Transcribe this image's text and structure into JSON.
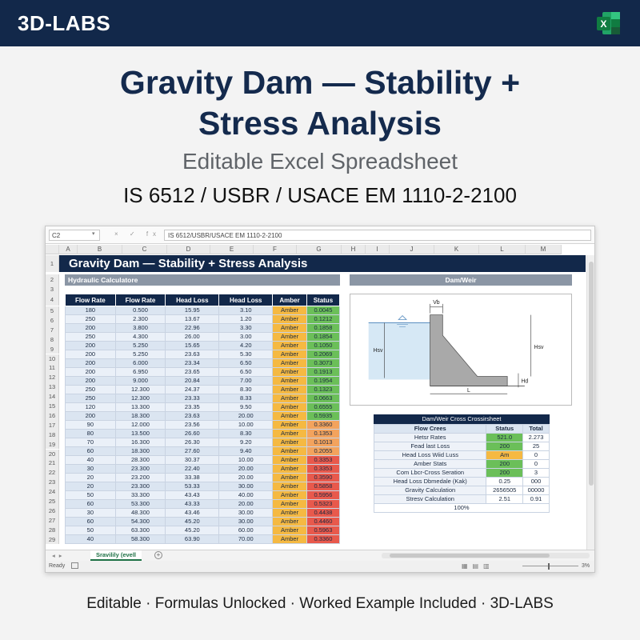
{
  "brand": "3D-LABS",
  "app_icon": "excel-icon",
  "title_line1": "Gravity Dam — Stability +",
  "title_line2": "Stress Analysis",
  "subtitle": "Editable Excel Spreadsheet",
  "standards": "IS 6512 / USBR / USACE EM 1110-2-2100",
  "spreadsheet": {
    "name_box": "C2",
    "formula_icons": "×  ✓  fx",
    "formula_content": "IS 6512/USBR/USACE EM 1110-2-2100",
    "columns": [
      "A",
      "B",
      "C",
      "D",
      "E",
      "F",
      "G",
      "H",
      "I",
      "J",
      "K",
      "L",
      "M"
    ],
    "rows": [
      "1",
      "2",
      "3",
      "4",
      "5",
      "6",
      "7",
      "8",
      "9",
      "10",
      "11",
      "12",
      "13",
      "14",
      "15",
      "16",
      "17",
      "18",
      "19",
      "20",
      "21",
      "22",
      "23",
      "24",
      "25",
      "26",
      "27",
      "28",
      "29"
    ],
    "banner": "Gravity Dam — Stability + Stress Analysis",
    "section_left": "Hydraulic Calculatore",
    "section_right": "Dam/Weir",
    "table_headers": [
      "Flow Rate",
      "Flow Rate",
      "Head Loss",
      "Head Loss",
      "Amber",
      "Status"
    ],
    "table_rows": [
      [
        "180",
        "0.500",
        "15.95",
        "3.10",
        "Amber",
        "0.0045",
        "green"
      ],
      [
        "250",
        "2.300",
        "13.67",
        "1.20",
        "Amber",
        "0.1212",
        "green"
      ],
      [
        "200",
        "3.800",
        "22.96",
        "3.30",
        "Amber",
        "0.1858",
        "green"
      ],
      [
        "250",
        "4.300",
        "26.00",
        "3.00",
        "Amber",
        "0.1854",
        "green"
      ],
      [
        "200",
        "5.250",
        "15.65",
        "4.20",
        "Amber",
        "0.1050",
        "green"
      ],
      [
        "200",
        "5.250",
        "23.63",
        "5.30",
        "Amber",
        "0.2069",
        "green"
      ],
      [
        "200",
        "6.000",
        "23.34",
        "6.50",
        "Amber",
        "0.3073",
        "green"
      ],
      [
        "200",
        "6.950",
        "23.65",
        "6.50",
        "Amber",
        "0.1913",
        "green"
      ],
      [
        "200",
        "9.000",
        "20.84",
        "7.00",
        "Amber",
        "0.1954",
        "green"
      ],
      [
        "250",
        "12.300",
        "24.37",
        "8.30",
        "Amber",
        "0.1323",
        "green"
      ],
      [
        "250",
        "12.300",
        "23.33",
        "8.33",
        "Amber",
        "0.0663",
        "green"
      ],
      [
        "120",
        "13.300",
        "23.35",
        "9.50",
        "Amber",
        "0.6555",
        "green"
      ],
      [
        "200",
        "18.300",
        "23.63",
        "20.00",
        "Amber",
        "0.5935",
        "green"
      ],
      [
        "90",
        "12.000",
        "23.56",
        "10.00",
        "Amber",
        "0.3360",
        "orange"
      ],
      [
        "80",
        "13.500",
        "26.60",
        "8.30",
        "Amber",
        "0.1353",
        "orange"
      ],
      [
        "70",
        "16.300",
        "26.30",
        "9.20",
        "Amber",
        "0.1013",
        "orange"
      ],
      [
        "60",
        "18.300",
        "27.60",
        "9.40",
        "Amber",
        "0.2055",
        "orange"
      ],
      [
        "40",
        "28.300",
        "30.37",
        "10.00",
        "Amber",
        "0.3353",
        "red"
      ],
      [
        "30",
        "23.300",
        "22.40",
        "20.00",
        "Amber",
        "0.3353",
        "red"
      ],
      [
        "20",
        "23.200",
        "33.38",
        "20.00",
        "Amber",
        "0.3590",
        "red"
      ],
      [
        "20",
        "23.300",
        "53.33",
        "30.00",
        "Amber",
        "0.5858",
        "red"
      ],
      [
        "50",
        "33.300",
        "43.43",
        "40.00",
        "Amber",
        "0.5956",
        "red"
      ],
      [
        "60",
        "53.300",
        "43.33",
        "20.00",
        "Amber",
        "0.5323",
        "red"
      ],
      [
        "30",
        "48.300",
        "43.46",
        "30.00",
        "Amber",
        "0.4438",
        "red"
      ],
      [
        "60",
        "54.300",
        "45.20",
        "30.00",
        "Amber",
        "0.4460",
        "red"
      ],
      [
        "50",
        "63.300",
        "45.20",
        "60.00",
        "Amber",
        "0.5963",
        "red"
      ],
      [
        "40",
        "58.300",
        "63.90",
        "70.00",
        "Amber",
        "0.3360",
        "red"
      ]
    ],
    "diagram_labels": {
      "crest_width": "Vb",
      "upstream_height": "Hsv",
      "downstream_height": "Hsv",
      "tailwater": "Hd",
      "base_length": "L"
    },
    "cross_section": {
      "title": "Dam/Weir Cross Crossirsheet",
      "headers": [
        "Flow Crees",
        "Status",
        "Total"
      ],
      "rows": [
        [
          "Hetsr Rates",
          "521.0",
          "2.273",
          "gr"
        ],
        [
          "Fead last Loss",
          "200",
          "25",
          "gr"
        ],
        [
          "Head Loss Wiid Luss",
          "Am",
          "0",
          "am"
        ],
        [
          "Amber Stats",
          "200",
          "0",
          "gr"
        ],
        [
          "Com Lbcr-Cross Seration",
          "200",
          "3",
          "gr"
        ],
        [
          "Head Loss Dbmedale (Kak)",
          "0.25",
          "000",
          ""
        ],
        [
          "Gravity Calculation",
          "2656505",
          "00000",
          ""
        ],
        [
          "Stresv Calculation",
          "2.51",
          "0.91",
          ""
        ]
      ],
      "footer": "100%"
    },
    "sheet_tab": "Sravilily (evell",
    "status_ready": "Ready",
    "zoom": "3%"
  },
  "footer": "Editable · Formulas Unlocked · Worked Example Included · 3D-LABS",
  "colors": {
    "navy": "#12284a",
    "amber": "#f5b942",
    "green": "#6bbf59",
    "red": "#e8594c",
    "excel": "#1e7145"
  }
}
